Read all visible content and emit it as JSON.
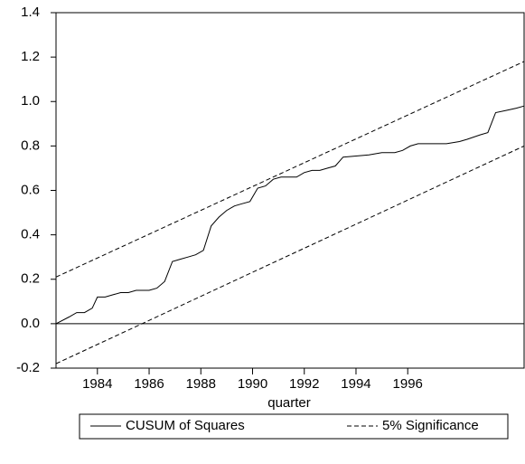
{
  "chart_data": {
    "type": "line",
    "x_label": "quarter",
    "xlim": [
      1982.4,
      2000.5
    ],
    "xticks": [
      1984,
      1986,
      1988,
      1990,
      1992,
      1994,
      1996
    ],
    "ylim": [
      -0.2,
      1.4
    ],
    "yticks": [
      -0.2,
      {
        "value": 0,
        "label": "0.0"
      },
      0.2,
      0.4,
      0.6,
      0.8,
      {
        "value": 1,
        "label": "1.0"
      },
      1.2,
      1.4
    ],
    "reference_line": 0,
    "legend": "bottom",
    "series": [
      {
        "name": "CUSUM of Squares",
        "color": "#000000",
        "style": "solid",
        "x": [
          1982.4,
          1982.9,
          1983.2,
          1983.5,
          1983.8,
          1984.0,
          1984.3,
          1984.6,
          1984.9,
          1985.2,
          1985.5,
          1986.0,
          1986.3,
          1986.6,
          1986.9,
          1987.2,
          1987.5,
          1987.8,
          1988.1,
          1988.4,
          1988.7,
          1989.0,
          1989.3,
          1989.6,
          1989.9,
          1990.2,
          1990.5,
          1990.8,
          1991.1,
          1991.7,
          1992.0,
          1992.3,
          1992.6,
          1992.9,
          1993.2,
          1993.5,
          1994.5,
          1995.0,
          1995.5,
          1995.8,
          1996.1,
          1996.4,
          1997.0,
          1997.5,
          1998.0,
          1998.3,
          1998.8,
          1999.1,
          1999.4,
          1999.8,
          2000.2,
          2000.5
        ],
        "values": [
          0.0,
          0.03,
          0.05,
          0.05,
          0.07,
          0.12,
          0.12,
          0.13,
          0.14,
          0.14,
          0.15,
          0.15,
          0.16,
          0.19,
          0.28,
          0.29,
          0.3,
          0.31,
          0.33,
          0.44,
          0.48,
          0.51,
          0.53,
          0.54,
          0.55,
          0.61,
          0.62,
          0.65,
          0.66,
          0.66,
          0.68,
          0.69,
          0.69,
          0.7,
          0.71,
          0.75,
          0.76,
          0.77,
          0.77,
          0.78,
          0.8,
          0.81,
          0.81,
          0.81,
          0.82,
          0.83,
          0.85,
          0.86,
          0.95,
          0.96,
          0.97,
          0.98
        ]
      },
      {
        "name": "5% Significance",
        "color": "#000000",
        "style": "dashed",
        "x": [
          1982.4,
          2000.5
        ],
        "values": [
          0.21,
          1.18
        ]
      },
      {
        "color": "#000000",
        "style": "dashed",
        "x": [
          1982.4,
          2000.5
        ],
        "values": [
          -0.18,
          0.8
        ]
      }
    ]
  }
}
